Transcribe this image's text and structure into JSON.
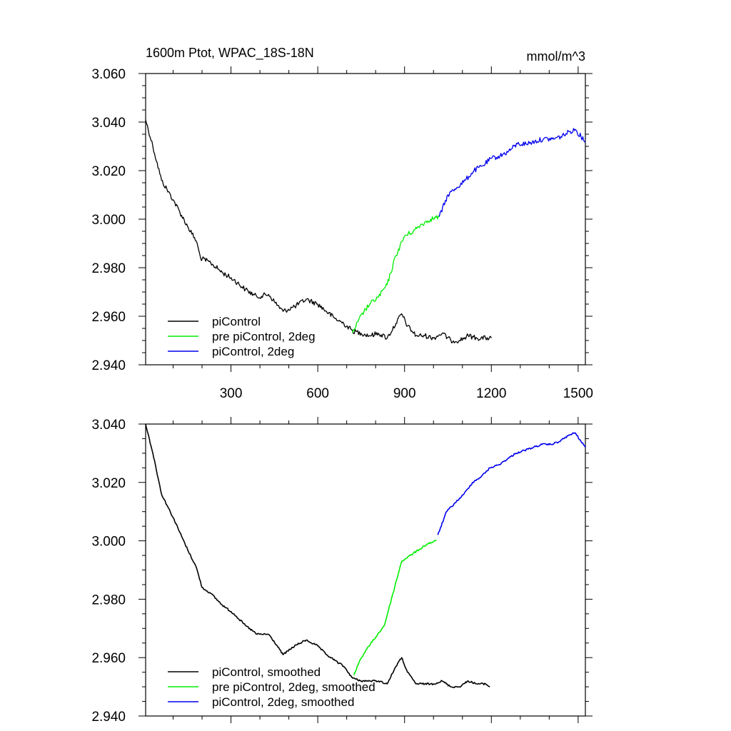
{
  "charts": [
    {
      "type": "line",
      "title": "1600m Ptot, WPAC_18S-18N",
      "units": "mmol/m^3",
      "xlim": [
        5,
        1525
      ],
      "ylim": [
        2.94,
        3.06
      ],
      "x_ticks": [
        300,
        600,
        900,
        1200,
        1500
      ],
      "x_tick_labels": [
        "300",
        "600",
        "900",
        "1200",
        "1500"
      ],
      "y_ticks": [
        2.94,
        2.96,
        2.98,
        3.0,
        3.02,
        3.04,
        3.06
      ],
      "y_tick_labels": [
        "2.940",
        "2.960",
        "2.980",
        "3.000",
        "3.020",
        "3.040",
        "3.060"
      ],
      "grid": false,
      "legend_position": "bottom-left",
      "series": [
        {
          "name": "piControl",
          "color": "#000000",
          "points": [
            [
              5,
              3.041
            ],
            [
              30,
              3.03
            ],
            [
              60,
              3.016
            ],
            [
              100,
              3.008
            ],
            [
              150,
              2.997
            ],
            [
              180,
              2.991
            ],
            [
              195,
              2.984
            ],
            [
              230,
              2.982
            ],
            [
              270,
              2.978
            ],
            [
              310,
              2.975
            ],
            [
              350,
              2.971
            ],
            [
              390,
              2.968
            ],
            [
              430,
              2.969
            ],
            [
              450,
              2.966
            ],
            [
              480,
              2.962
            ],
            [
              520,
              2.964
            ],
            [
              560,
              2.967
            ],
            [
              600,
              2.965
            ],
            [
              630,
              2.962
            ],
            [
              660,
              2.959
            ],
            [
              690,
              2.957
            ],
            [
              720,
              2.954
            ],
            [
              750,
              2.953
            ],
            [
              780,
              2.952
            ],
            [
              810,
              2.953
            ],
            [
              840,
              2.951
            ],
            [
              870,
              2.957
            ],
            [
              890,
              2.961
            ],
            [
              910,
              2.956
            ],
            [
              940,
              2.952
            ],
            [
              970,
              2.952
            ],
            [
              1000,
              2.951
            ],
            [
              1030,
              2.953
            ],
            [
              1060,
              2.95
            ],
            [
              1090,
              2.95
            ],
            [
              1120,
              2.952
            ],
            [
              1150,
              2.951
            ],
            [
              1180,
              2.951
            ],
            [
              1200,
              2.951
            ]
          ]
        },
        {
          "name": "pre piControl, 2deg",
          "color": "#00ee00",
          "points": [
            [
              720,
              2.953
            ],
            [
              740,
              2.958
            ],
            [
              760,
              2.962
            ],
            [
              780,
              2.965
            ],
            [
              810,
              2.968
            ],
            [
              840,
              2.973
            ],
            [
              870,
              2.985
            ],
            [
              900,
              2.993
            ],
            [
              930,
              2.995
            ],
            [
              960,
              2.998
            ],
            [
              990,
              3.0
            ],
            [
              1020,
              3.001
            ]
          ]
        },
        {
          "name": "piControl, 2deg",
          "color": "#0000ee",
          "points": [
            [
              1020,
              3.001
            ],
            [
              1050,
              3.01
            ],
            [
              1080,
              3.013
            ],
            [
              1110,
              3.016
            ],
            [
              1140,
              3.02
            ],
            [
              1170,
              3.022
            ],
            [
              1200,
              3.025
            ],
            [
              1230,
              3.026
            ],
            [
              1260,
              3.028
            ],
            [
              1290,
              3.031
            ],
            [
              1320,
              3.031
            ],
            [
              1350,
              3.032
            ],
            [
              1380,
              3.033
            ],
            [
              1410,
              3.033
            ],
            [
              1440,
              3.034
            ],
            [
              1470,
              3.036
            ],
            [
              1490,
              3.037
            ],
            [
              1510,
              3.034
            ],
            [
              1525,
              3.032
            ]
          ]
        }
      ]
    },
    {
      "type": "line",
      "title": "",
      "units": "",
      "xlim": [
        5,
        1525
      ],
      "ylim": [
        2.94,
        3.04
      ],
      "x_ticks": [
        300,
        600,
        900,
        1200,
        1500
      ],
      "x_tick_labels": [],
      "y_ticks": [
        2.94,
        2.96,
        2.98,
        3.0,
        3.02,
        3.04
      ],
      "y_tick_labels": [
        "2.940",
        "2.960",
        "2.980",
        "3.000",
        "3.020",
        "3.040"
      ],
      "grid": false,
      "legend_position": "bottom-left",
      "series": [
        {
          "name": "piControl, smoothed",
          "color": "#000000",
          "points": [
            [
              5,
              3.04
            ],
            [
              30,
              3.03
            ],
            [
              60,
              3.016
            ],
            [
              100,
              3.008
            ],
            [
              150,
              2.997
            ],
            [
              180,
              2.991
            ],
            [
              200,
              2.984
            ],
            [
              230,
              2.982
            ],
            [
              270,
              2.978
            ],
            [
              310,
              2.975
            ],
            [
              350,
              2.971
            ],
            [
              390,
              2.968
            ],
            [
              430,
              2.968
            ],
            [
              460,
              2.964
            ],
            [
              480,
              2.961
            ],
            [
              520,
              2.964
            ],
            [
              560,
              2.966
            ],
            [
              600,
              2.964
            ],
            [
              630,
              2.961
            ],
            [
              660,
              2.959
            ],
            [
              690,
              2.957
            ],
            [
              720,
              2.953
            ],
            [
              750,
              2.952
            ],
            [
              780,
              2.952
            ],
            [
              810,
              2.952
            ],
            [
              840,
              2.951
            ],
            [
              870,
              2.957
            ],
            [
              890,
              2.96
            ],
            [
              910,
              2.955
            ],
            [
              940,
              2.951
            ],
            [
              970,
              2.951
            ],
            [
              1000,
              2.951
            ],
            [
              1030,
              2.952
            ],
            [
              1060,
              2.95
            ],
            [
              1090,
              2.95
            ],
            [
              1120,
              2.952
            ],
            [
              1150,
              2.951
            ],
            [
              1180,
              2.951
            ],
            [
              1195,
              2.95
            ]
          ]
        },
        {
          "name": "pre piControl, 2deg, smoothed",
          "color": "#00ee00",
          "points": [
            [
              725,
              2.954
            ],
            [
              745,
              2.959
            ],
            [
              770,
              2.963
            ],
            [
              800,
              2.967
            ],
            [
              830,
              2.971
            ],
            [
              860,
              2.982
            ],
            [
              890,
              2.993
            ],
            [
              920,
              2.995
            ],
            [
              950,
              2.997
            ],
            [
              980,
              2.999
            ],
            [
              1010,
              3.0
            ]
          ]
        },
        {
          "name": "piControl, 2deg, smoothed",
          "color": "#0000ee",
          "points": [
            [
              1015,
              3.002
            ],
            [
              1045,
              3.01
            ],
            [
              1075,
              3.013
            ],
            [
              1105,
              3.016
            ],
            [
              1135,
              3.02
            ],
            [
              1165,
              3.022
            ],
            [
              1195,
              3.025
            ],
            [
              1225,
              3.026
            ],
            [
              1255,
              3.028
            ],
            [
              1285,
              3.03
            ],
            [
              1315,
              3.031
            ],
            [
              1345,
              3.032
            ],
            [
              1375,
              3.033
            ],
            [
              1405,
              3.033
            ],
            [
              1435,
              3.034
            ],
            [
              1465,
              3.036
            ],
            [
              1490,
              3.037
            ],
            [
              1510,
              3.034
            ],
            [
              1525,
              3.032
            ]
          ]
        }
      ]
    }
  ]
}
